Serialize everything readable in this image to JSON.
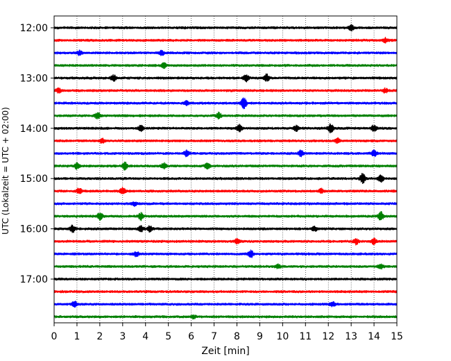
{
  "chart_data": {
    "type": "line",
    "title": "",
    "xlabel": "Zeit  [min]",
    "ylabel": "UTC (Lokalzeit = UTC + 02:00)",
    "xlim": [
      0,
      15
    ],
    "x_ticks": [
      "0",
      "1",
      "2",
      "3",
      "4",
      "5",
      "6",
      "7",
      "8",
      "9",
      "10",
      "11",
      "12",
      "13",
      "14",
      "15"
    ],
    "y_ticks": [
      "12:00",
      "13:00",
      "14:00",
      "15:00",
      "16:00",
      "17:00"
    ],
    "grid": "vertical dotted at each minute",
    "trace_interval_min": 15,
    "start_time": "12:00",
    "trace_colors": [
      "#000000",
      "#ff0000",
      "#0000ff",
      "#008000"
    ],
    "series": [
      {
        "start": "12:00",
        "color": "#000000",
        "events": [
          {
            "t": 13.0,
            "amp": 4
          }
        ]
      },
      {
        "start": "12:15",
        "color": "#ff0000",
        "events": [
          {
            "t": 14.5,
            "amp": 3
          }
        ]
      },
      {
        "start": "12:30",
        "color": "#0000ff",
        "events": [
          {
            "t": 1.1,
            "amp": 3
          },
          {
            "t": 4.7,
            "amp": 3
          }
        ]
      },
      {
        "start": "12:45",
        "color": "#008000",
        "events": [
          {
            "t": 4.8,
            "amp": 3
          }
        ]
      },
      {
        "start": "13:00",
        "color": "#000000",
        "events": [
          {
            "t": 2.6,
            "amp": 4
          },
          {
            "t": 8.4,
            "amp": 5
          },
          {
            "t": 9.3,
            "amp": 5
          }
        ]
      },
      {
        "start": "13:15",
        "color": "#ff0000",
        "events": [
          {
            "t": 0.2,
            "amp": 3
          },
          {
            "t": 14.5,
            "amp": 3
          }
        ]
      },
      {
        "start": "13:30",
        "color": "#0000ff",
        "events": [
          {
            "t": 8.3,
            "amp": 8
          },
          {
            "t": 5.8,
            "amp": 3
          }
        ]
      },
      {
        "start": "13:45",
        "color": "#008000",
        "events": [
          {
            "t": 1.9,
            "amp": 4
          },
          {
            "t": 7.2,
            "amp": 4
          }
        ]
      },
      {
        "start": "14:00",
        "color": "#000000",
        "events": [
          {
            "t": 3.8,
            "amp": 4
          },
          {
            "t": 8.1,
            "amp": 5
          },
          {
            "t": 10.6,
            "amp": 4
          },
          {
            "t": 12.1,
            "amp": 6
          },
          {
            "t": 14.0,
            "amp": 4
          }
        ]
      },
      {
        "start": "14:15",
        "color": "#ff0000",
        "events": [
          {
            "t": 2.1,
            "amp": 3
          },
          {
            "t": 12.4,
            "amp": 3
          }
        ]
      },
      {
        "start": "14:30",
        "color": "#0000ff",
        "events": [
          {
            "t": 5.8,
            "amp": 4
          },
          {
            "t": 10.8,
            "amp": 4
          },
          {
            "t": 14.0,
            "amp": 4
          }
        ]
      },
      {
        "start": "14:45",
        "color": "#008000",
        "events": [
          {
            "t": 1.0,
            "amp": 4
          },
          {
            "t": 3.1,
            "amp": 5
          },
          {
            "t": 4.8,
            "amp": 4
          },
          {
            "t": 6.7,
            "amp": 4
          }
        ]
      },
      {
        "start": "15:00",
        "color": "#000000",
        "events": [
          {
            "t": 13.5,
            "amp": 7
          },
          {
            "t": 14.3,
            "amp": 5
          }
        ]
      },
      {
        "start": "15:15",
        "color": "#ff0000",
        "events": [
          {
            "t": 1.1,
            "amp": 4
          },
          {
            "t": 3.0,
            "amp": 5
          },
          {
            "t": 11.7,
            "amp": 3
          }
        ]
      },
      {
        "start": "15:30",
        "color": "#0000ff",
        "events": [
          {
            "t": 3.5,
            "amp": 3
          }
        ]
      },
      {
        "start": "15:45",
        "color": "#008000",
        "events": [
          {
            "t": 2.0,
            "amp": 5
          },
          {
            "t": 3.8,
            "amp": 5
          },
          {
            "t": 14.3,
            "amp": 6
          }
        ]
      },
      {
        "start": "16:00",
        "color": "#000000",
        "events": [
          {
            "t": 0.8,
            "amp": 5
          },
          {
            "t": 3.8,
            "amp": 4
          },
          {
            "t": 4.2,
            "amp": 4
          },
          {
            "t": 11.4,
            "amp": 3
          }
        ]
      },
      {
        "start": "16:15",
        "color": "#ff0000",
        "events": [
          {
            "t": 8.0,
            "amp": 3
          },
          {
            "t": 13.2,
            "amp": 4
          },
          {
            "t": 14.0,
            "amp": 4
          }
        ]
      },
      {
        "start": "16:30",
        "color": "#0000ff",
        "events": [
          {
            "t": 3.6,
            "amp": 3
          },
          {
            "t": 8.6,
            "amp": 5
          }
        ]
      },
      {
        "start": "16:45",
        "color": "#008000",
        "events": [
          {
            "t": 9.8,
            "amp": 3
          },
          {
            "t": 14.3,
            "amp": 3
          }
        ]
      },
      {
        "start": "17:00",
        "color": "#000000",
        "events": []
      },
      {
        "start": "17:15",
        "color": "#ff0000",
        "events": []
      },
      {
        "start": "17:30",
        "color": "#0000ff",
        "events": [
          {
            "t": 0.9,
            "amp": 4
          },
          {
            "t": 12.2,
            "amp": 3
          }
        ]
      },
      {
        "start": "17:45",
        "color": "#008000",
        "events": [
          {
            "t": 6.1,
            "amp": 2
          }
        ]
      }
    ]
  }
}
